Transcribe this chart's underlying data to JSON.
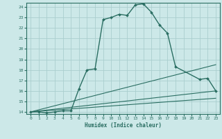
{
  "xlabel": "Humidex (Indice chaleur)",
  "xlim": [
    -0.5,
    23.5
  ],
  "ylim": [
    13.8,
    24.4
  ],
  "yticks": [
    14,
    15,
    16,
    17,
    18,
    19,
    20,
    21,
    22,
    23,
    24
  ],
  "xticks": [
    0,
    1,
    2,
    3,
    4,
    5,
    6,
    7,
    8,
    9,
    10,
    11,
    12,
    13,
    14,
    15,
    16,
    17,
    18,
    19,
    20,
    21,
    22,
    23
  ],
  "bg_color": "#cce8e8",
  "grid_color": "#aacece",
  "line_color": "#2a6e62",
  "series": [
    {
      "x": [
        0,
        1,
        2,
        3,
        4,
        5,
        6,
        7,
        8,
        9,
        10,
        11,
        12,
        13,
        14,
        15,
        16,
        17,
        18,
        21,
        22,
        23
      ],
      "y": [
        14.0,
        14.0,
        13.9,
        14.0,
        14.1,
        14.1,
        16.2,
        18.0,
        18.1,
        22.8,
        23.0,
        23.3,
        23.2,
        24.2,
        24.3,
        23.5,
        22.3,
        21.5,
        18.3,
        17.1,
        17.2,
        16.0
      ],
      "has_markers": true,
      "linewidth": 1.0,
      "markersize": 2.0
    },
    {
      "x": [
        0,
        23
      ],
      "y": [
        14.0,
        16.0
      ],
      "has_markers": false,
      "linewidth": 0.8
    },
    {
      "x": [
        0,
        23
      ],
      "y": [
        14.0,
        15.3
      ],
      "has_markers": false,
      "linewidth": 0.8
    },
    {
      "x": [
        0,
        23
      ],
      "y": [
        14.0,
        18.5
      ],
      "has_markers": false,
      "linewidth": 0.8
    }
  ]
}
